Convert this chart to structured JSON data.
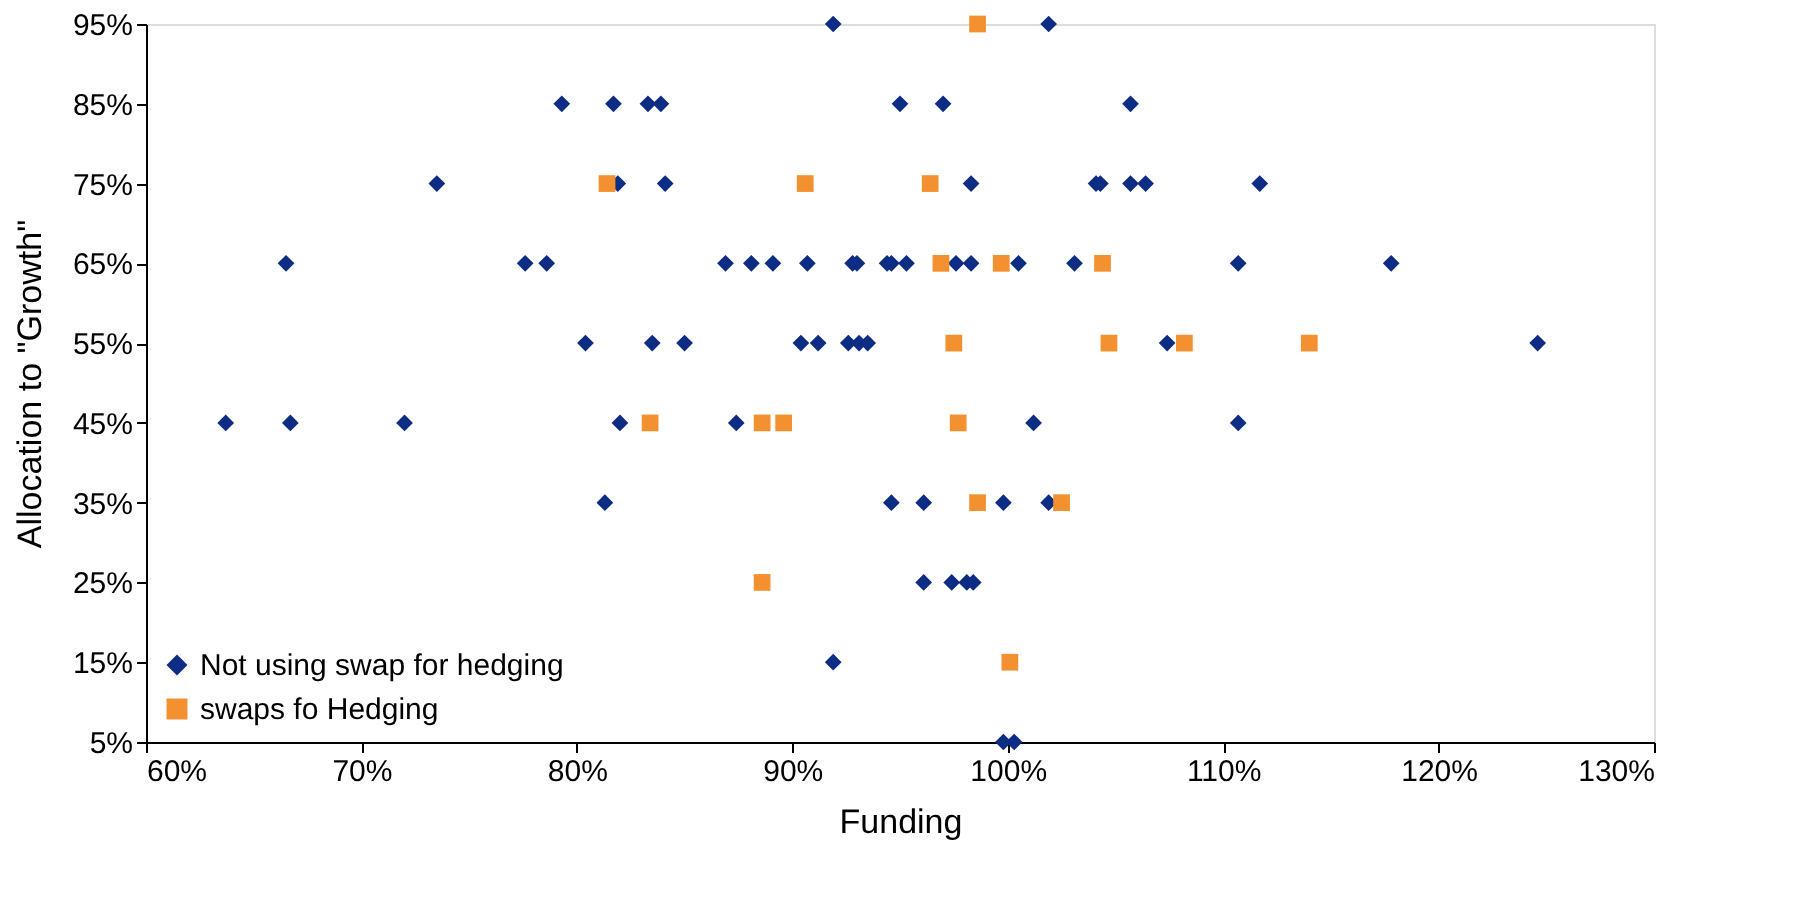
{
  "chart_data": {
    "type": "scatter",
    "xlabel": "Funding",
    "ylabel": "Allocation to \"Growth\"",
    "xlim": [
      60,
      130
    ],
    "xticks": [
      {
        "value": 60,
        "label": "60%"
      },
      {
        "value": 70,
        "label": "70%"
      },
      {
        "value": 80,
        "label": "80%"
      },
      {
        "value": 90,
        "label": "90%"
      },
      {
        "value": 100,
        "label": "100%"
      },
      {
        "value": 110,
        "label": "110%"
      },
      {
        "value": 120,
        "label": "120%"
      },
      {
        "value": 130,
        "label": "130%"
      }
    ],
    "ylim": [
      5,
      95
    ],
    "yticks": [
      {
        "value": 5,
        "label": "5%"
      },
      {
        "value": 15,
        "label": "15%"
      },
      {
        "value": 25,
        "label": "25%"
      },
      {
        "value": 35,
        "label": "35%"
      },
      {
        "value": 45,
        "label": "45%"
      },
      {
        "value": 55,
        "label": "55%"
      },
      {
        "value": 65,
        "label": "65%"
      },
      {
        "value": 75,
        "label": "75%"
      },
      {
        "value": 85,
        "label": "85%"
      },
      {
        "value": 95,
        "label": "95%"
      }
    ],
    "grid": false,
    "legend": "bottom left",
    "series": [
      {
        "name": "Not using swap for hedging",
        "color": "#0d2d84",
        "marker": "diamond",
        "x": [
          91.9,
          101.9,
          79.3,
          81.7,
          83.3,
          83.9,
          95.0,
          97.0,
          105.7,
          73.5,
          81.9,
          84.1,
          98.3,
          104.1,
          104.3,
          105.7,
          106.4,
          111.7,
          66.5,
          77.6,
          78.6,
          86.9,
          88.1,
          89.1,
          90.7,
          92.8,
          93.0,
          94.4,
          94.6,
          95.3,
          97.6,
          98.3,
          100.5,
          103.1,
          110.7,
          117.8,
          80.4,
          83.5,
          85.0,
          90.4,
          91.2,
          92.6,
          93.1,
          93.5,
          107.4,
          124.6,
          63.7,
          66.7,
          72.0,
          82.0,
          87.4,
          101.2,
          110.7,
          81.3,
          94.6,
          96.1,
          99.8,
          101.9,
          96.1,
          97.4,
          98.1,
          98.4,
          91.9,
          99.8,
          100.3
        ],
        "values": [
          95,
          95,
          85,
          85,
          85,
          85,
          85,
          85,
          85,
          75,
          75,
          75,
          75,
          75,
          75,
          75,
          75,
          75,
          65,
          65,
          65,
          65,
          65,
          65,
          65,
          65,
          65,
          65,
          65,
          65,
          65,
          65,
          65,
          65,
          65,
          65,
          55,
          55,
          55,
          55,
          55,
          55,
          55,
          55,
          55,
          55,
          45,
          45,
          45,
          45,
          45,
          45,
          45,
          35,
          35,
          35,
          35,
          35,
          25,
          25,
          25,
          25,
          15,
          5,
          5
        ]
      },
      {
        "name": "swaps fo Hedging",
        "color": "#f39130",
        "marker": "square",
        "x": [
          98.6,
          81.4,
          90.6,
          96.4,
          96.9,
          99.7,
          104.4,
          97.5,
          104.7,
          108.2,
          114.0,
          83.4,
          88.6,
          89.6,
          97.7,
          98.6,
          102.5,
          88.6,
          100.1
        ],
        "values": [
          95,
          75,
          75,
          75,
          65,
          65,
          65,
          55,
          55,
          55,
          55,
          45,
          45,
          45,
          45,
          35,
          35,
          25,
          15
        ]
      }
    ]
  }
}
